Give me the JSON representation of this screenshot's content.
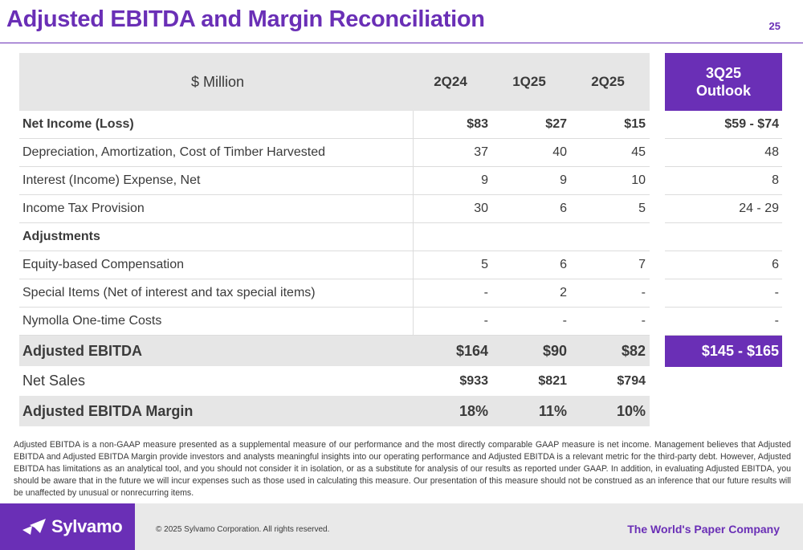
{
  "header": {
    "title": "Adjusted EBITDA and Margin Reconciliation",
    "page_number": "25"
  },
  "table": {
    "unit_label": "$ Million",
    "columns": [
      "2Q24",
      "1Q25",
      "2Q25"
    ],
    "outlook_label_line1": "3Q25",
    "outlook_label_line2": "Outlook",
    "rows": [
      {
        "label": "Net Income (Loss)",
        "values": [
          "$83",
          "$27",
          "$15"
        ],
        "outlook": "$59 - $74"
      },
      {
        "label": "Depreciation, Amortization, Cost of Timber Harvested",
        "values": [
          "37",
          "40",
          "45"
        ],
        "outlook": "48"
      },
      {
        "label": "Interest (Income) Expense, Net",
        "values": [
          "9",
          "9",
          "10"
        ],
        "outlook": "8"
      },
      {
        "label": "Income Tax Provision",
        "values": [
          "30",
          "6",
          "5"
        ],
        "outlook": "24 - 29"
      },
      {
        "label": "Adjustments",
        "values": [
          "",
          "",
          ""
        ],
        "outlook": ""
      },
      {
        "label": "Equity-based Compensation",
        "values": [
          "5",
          "6",
          "7"
        ],
        "outlook": "6"
      },
      {
        "label": "Special Items (Net of interest and tax special items)",
        "values": [
          "-",
          "2",
          "-"
        ],
        "outlook": "-"
      },
      {
        "label": "Nymolla One-time Costs",
        "values": [
          "-",
          "-",
          "-"
        ],
        "outlook": "-"
      },
      {
        "label": "Adjusted EBITDA",
        "values": [
          "$164",
          "$90",
          "$82"
        ],
        "outlook": "$145 - $165"
      },
      {
        "label": "Net Sales",
        "values": [
          "$933",
          "$821",
          "$794"
        ]
      },
      {
        "label": "Adjusted EBITDA Margin",
        "values": [
          "18%",
          "11%",
          "10%"
        ]
      }
    ]
  },
  "disclaimer": "Adjusted EBITDA is a non-GAAP measure presented as a supplemental measure of our performance and the most directly comparable GAAP measure is net income. Management believes that Adjusted EBITDA and Adjusted EBITDA Margin provide investors and analysts meaningful insights into our operating performance and Adjusted EBITDA is a relevant metric for the third-party debt. However, Adjusted EBITDA has limitations as an analytical tool, and you should not consider it in isolation, or as a substitute for analysis of our results as reported under GAAP. In addition, in evaluating Adjusted EBITDA, you should be aware that in the future we will incur expenses such as those used in calculating this measure. Our presentation of this measure should not be construed as an inference that our future results will be unaffected by unusual or nonrecurring items.",
  "footer": {
    "logo_text": "Sylvamo",
    "logo_icon": "paper-plane-icon",
    "copyright": "© 2025 Sylvamo Corporation. All rights reserved.",
    "tagline": "The World's Paper Company"
  },
  "colors": {
    "brand_purple": "#6a2fb6",
    "band_gray": "#e6e6e6"
  }
}
